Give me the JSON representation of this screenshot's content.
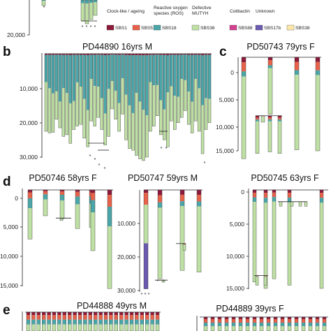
{
  "colors": {
    "SBS1": "#8b1a3a",
    "SBS5": "#e8624a",
    "SBS18": "#4aa6a8",
    "SBS36": "#bfe0a4",
    "SBS88": "#d43f8f",
    "SBS17b": "#6a5bb0",
    "SBS38": "#fbe7a8"
  },
  "legend": {
    "groups": [
      {
        "heading": "Clock-like / ageing",
        "items": [
          "SBS1",
          "SBS5"
        ]
      },
      {
        "heading": "Reactive oxygen species (ROS)",
        "items": [
          "SBS18"
        ]
      },
      {
        "heading": "Defective MUTYH",
        "items": [
          "SBS36"
        ]
      },
      {
        "heading": "Colibactin",
        "items": [
          "SBS88"
        ]
      },
      {
        "heading": "Unknown",
        "items": [
          "SBS17b",
          "SBS38"
        ]
      }
    ]
  },
  "chart_data": [
    {
      "panel": "a",
      "type": "bar",
      "orientation": "downward stacked phylogeny",
      "yticks": [
        "20,000"
      ],
      "series": [
        "SBS1",
        "SBS5",
        "SBS18",
        "SBS36"
      ]
    },
    {
      "panel": "b",
      "type": "bar",
      "title": "PD44890 16yrs M",
      "ylim": [
        0,
        30000
      ],
      "yticks": [
        "10,000",
        "20,000",
        "30,000"
      ],
      "branch_depths": [
        22500,
        23000,
        22800,
        19000,
        21500,
        24000,
        23500,
        26000,
        22000,
        21000,
        20500,
        24500,
        27000,
        19500,
        21000,
        18500,
        22000,
        26500,
        24000,
        16000,
        19000,
        22500,
        17500,
        25000,
        27500,
        28000,
        29500,
        30500,
        31000,
        30000,
        22500,
        21000,
        18000,
        23500,
        25000,
        27000,
        19500,
        22000,
        20000,
        18500,
        16500,
        20500,
        23000,
        19500,
        22500,
        29000,
        22000,
        20000
      ]
    },
    {
      "panel": "c",
      "type": "bar",
      "title": "PD50743 79yrs F",
      "ylim": [
        0,
        17000
      ],
      "yticks": [
        "0",
        "5,000",
        "10,000",
        "15,000"
      ],
      "branch_depths": [
        16500,
        15000,
        15500,
        15200,
        15500,
        14800,
        15000
      ]
    },
    {
      "panel": "d1",
      "type": "bar",
      "title": "PD50746 58yrs F",
      "ylim": [
        0,
        16000
      ],
      "yticks": [
        "0",
        "5,000",
        "10,000",
        "15,000"
      ],
      "branch_depths": [
        7000,
        3000,
        3500,
        4500,
        5000,
        3500,
        9000,
        15500
      ]
    },
    {
      "panel": "d2",
      "type": "bar",
      "title": "PD50747 59yrs M",
      "ylim": [
        0,
        30000
      ],
      "yticks": [
        "10,000",
        "20,000",
        "30,000"
      ],
      "branch_depths": [
        29500,
        23500,
        24500,
        27000,
        27500,
        26500,
        24000,
        23000
      ]
    },
    {
      "panel": "d3",
      "type": "bar",
      "title": "PD50745 63yrs F",
      "ylim": [
        0,
        16000
      ],
      "yticks": [
        "0",
        "5,000",
        "10,000",
        "15,000"
      ],
      "branch_depths": [
        15000,
        15000,
        14000,
        13500,
        2500,
        2000,
        14000,
        15000
      ]
    },
    {
      "panel": "e1",
      "type": "bar",
      "title": "PD44888 49yrs M"
    },
    {
      "panel": "e2",
      "type": "bar",
      "title": "PD44889 39yrs F"
    }
  ],
  "panels": {
    "b": {
      "letter": "b",
      "title": "PD44890 16yrs M",
      "ticks": [
        "10,000",
        "20,000",
        "30,000"
      ]
    },
    "c": {
      "letter": "c",
      "title": "PD50743 79yrs F",
      "ticks": [
        "0",
        "5,000",
        "10,000",
        "15,000"
      ]
    },
    "d": {
      "letter": "d"
    },
    "d1": {
      "title": "PD50746 58yrs F",
      "ticks": [
        "0",
        "5,000",
        "10,000",
        "15,000"
      ]
    },
    "d2": {
      "title": "PD50747 59yrs M",
      "ticks": [
        "10,000",
        "20,000",
        "30,000"
      ]
    },
    "d3": {
      "title": "PD50745 63yrs F",
      "ticks": [
        "0",
        "5,000",
        "10,000",
        "15,000"
      ]
    },
    "e": {
      "letter": "e",
      "title1": "PD44888 49yrs M",
      "title2": "PD44889 39yrs F"
    },
    "a": {
      "tick": "20,000"
    }
  }
}
